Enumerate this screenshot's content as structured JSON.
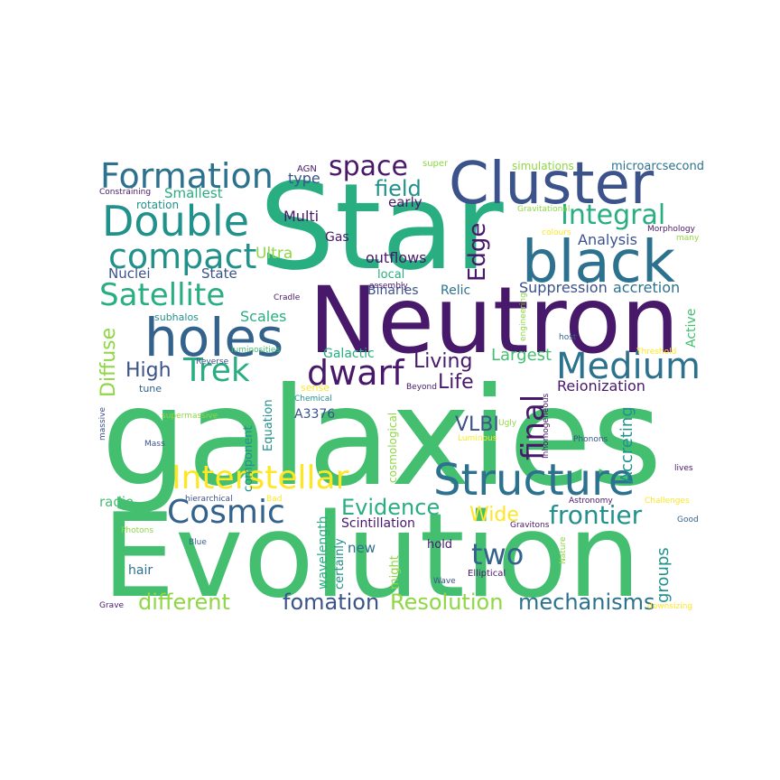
{
  "palette": {
    "dark_purple": "#48186a",
    "indigo": "#3b528b",
    "blue": "#33638d",
    "teal_blue": "#2c728e",
    "teal": "#21918c",
    "green_teal": "#28ae80",
    "green": "#44bf70",
    "light_green": "#8fd744",
    "yellow": "#fde725"
  },
  "words": {
    "w1": "Star",
    "w2": "galaxies",
    "w3": "Evolution",
    "w4": "Neutron",
    "w5": "Cluster",
    "w6": "black",
    "w7": "holes",
    "w8": "Double",
    "w9": "Formation",
    "w10": "compact",
    "w11": "Structure",
    "w12": "Interstellar",
    "w13": "Satellite",
    "w14": "Medium",
    "w15": "Integral",
    "w16": "dwarf",
    "w17": "Trek",
    "w18": "Cosmic",
    "w19": "frontier",
    "w20": "space",
    "w21": "final",
    "w22": "Evidence",
    "w23": "two",
    "w24": "different",
    "w25": "fomation",
    "w26": "Resolution",
    "w27": "mechanisms",
    "w28": "Edge",
    "w29": "field",
    "w30": "High",
    "w31": "Diffuse",
    "w32": "Living",
    "w33": "Life",
    "w34": "VLBI",
    "w35": "Wide",
    "w36": "Accreting",
    "w37": "groups",
    "w38": "Largest",
    "w39": "Reionization",
    "w40": "Suppression",
    "w41": "accretion",
    "w42": "Analysis",
    "w43": "outflows",
    "w44": "Binaries",
    "w45": "Relic",
    "w46": "Scales",
    "w47": "Ultra",
    "w48": "Multi",
    "w49": "Nuclei",
    "w50": "State",
    "w51": "Smallest",
    "w52": "type",
    "w53": "early",
    "w54": "Gas",
    "w55": "local",
    "w56": "new",
    "w57": "hold",
    "w58": "Galactic",
    "w59": "Scintillation",
    "w60": "wavelength",
    "w61": "certainly",
    "w62": "might",
    "w63": "cosmological",
    "w64": "component",
    "w65": "Equation",
    "w66": "A3376",
    "w67": "radio",
    "w68": "hair",
    "w69": "Active",
    "w70": "microarcsecond",
    "w71": "simulations",
    "w72": "AGN",
    "w73": "super",
    "w74": "Gravitational",
    "w75": "Constraining",
    "w76": "rotation",
    "w77": "colours",
    "w78": "Morphology",
    "w79": "many",
    "w80": "assembly",
    "w81": "Cradle",
    "w82": "subhalos",
    "w83": "engineering",
    "w84": "host",
    "w85": "Threshold",
    "w86": "luminosities",
    "w87": "Reverse",
    "w88": "tune",
    "w89": "sense",
    "w90": "Chemical",
    "w91": "Beyond",
    "w92": "Ugly",
    "w93": "Inhomogeneous",
    "w94": "Luminous",
    "w95": "supermassive",
    "w96": "massive",
    "w97": "Mass",
    "w98": "Phonons",
    "w99": "lives",
    "w100": "hierarchical",
    "w101": "Bad",
    "w102": "Astronomy",
    "w103": "Challenges",
    "w104": "Gravitons",
    "w105": "Good",
    "w106": "Photons",
    "w107": "Blue",
    "w108": "Nature",
    "w109": "Wave",
    "w110": "Elliptical",
    "w111": "Grave",
    "w112": "downsizing"
  }
}
